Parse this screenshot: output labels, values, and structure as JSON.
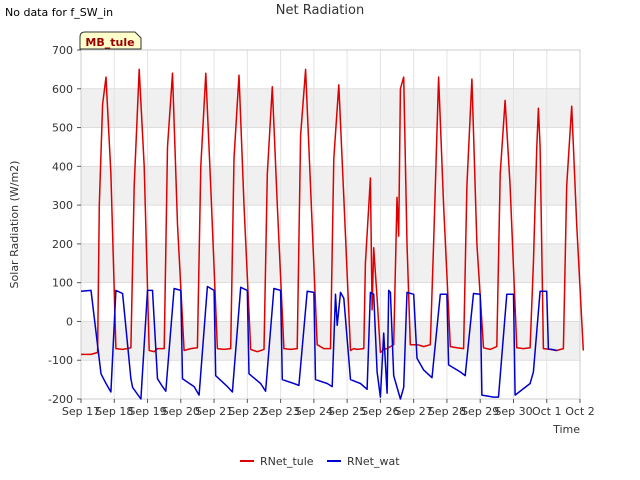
{
  "header": {
    "note": "No data for f_SW_in",
    "site_badge": "MB_tule"
  },
  "chart_data": {
    "type": "line",
    "title": "Net Radiation",
    "xlabel": "Time",
    "ylabel": "Solar Radiation (W/m2)",
    "ylim": [
      -200,
      700
    ],
    "yticks": [
      -200,
      -100,
      0,
      100,
      200,
      300,
      400,
      500,
      600,
      700
    ],
    "xlim": [
      "2023-09-17",
      "2023-10-02"
    ],
    "xtick_labels": [
      "Sep 17",
      "Sep 18",
      "Sep 19",
      "Sep 20",
      "Sep 21",
      "Sep 22",
      "Sep 23",
      "Sep 24",
      "Sep 25",
      "Sep 26",
      "Sep 27",
      "Sep 28",
      "Sep 29",
      "Sep 30",
      "Oct 1",
      "Oct 2"
    ],
    "grid": true,
    "banded_background": true,
    "legend_position": "bottom-center",
    "series": [
      {
        "name": "RNet_tule",
        "color": "#dd0000",
        "x": [
          17.0,
          17.3,
          17.5,
          17.55,
          17.65,
          17.75,
          17.9,
          18.05,
          18.25,
          18.5,
          18.6,
          18.75,
          18.9,
          19.05,
          19.2,
          19.3,
          19.5,
          19.6,
          19.75,
          19.9,
          20.1,
          20.3,
          20.5,
          20.6,
          20.75,
          20.9,
          21.1,
          21.3,
          21.5,
          21.6,
          21.75,
          21.9,
          22.1,
          22.3,
          22.5,
          22.6,
          22.75,
          22.9,
          23.1,
          23.3,
          23.5,
          23.6,
          23.75,
          23.9,
          24.1,
          24.3,
          24.5,
          24.6,
          24.75,
          24.9,
          25.1,
          25.2,
          25.3,
          25.5,
          25.55,
          25.7,
          25.75,
          25.8,
          25.9,
          26.0,
          26.1,
          26.2,
          26.3,
          26.4,
          26.5,
          26.55,
          26.6,
          26.7,
          26.8,
          26.9,
          27.1,
          27.2,
          27.3,
          27.5,
          27.6,
          27.75,
          27.9,
          28.1,
          28.3,
          28.5,
          28.6,
          28.75,
          28.9,
          29.1,
          29.3,
          29.5,
          29.6,
          29.75,
          29.9,
          30.1,
          30.3,
          30.5,
          30.6,
          30.7,
          30.75,
          30.8,
          30.9,
          31.1,
          31.3,
          31.5,
          31.6,
          31.75,
          31.9,
          32.1
        ],
        "y": [
          -85,
          -85,
          -80,
          300,
          560,
          630,
          380,
          -70,
          -72,
          -68,
          350,
          650,
          400,
          -75,
          -78,
          -70,
          -70,
          450,
          640,
          250,
          -75,
          -70,
          -68,
          400,
          640,
          350,
          -70,
          -72,
          -70,
          420,
          635,
          300,
          -72,
          -78,
          -72,
          380,
          605,
          300,
          -70,
          -72,
          -70,
          480,
          650,
          350,
          -60,
          -70,
          -70,
          420,
          610,
          320,
          -75,
          -70,
          -72,
          -70,
          150,
          370,
          30,
          190,
          60,
          -80,
          -72,
          -70,
          -65,
          -60,
          320,
          220,
          600,
          630,
          200,
          -60,
          -60,
          -62,
          -65,
          -60,
          200,
          630,
          300,
          -65,
          -68,
          -70,
          350,
          625,
          200,
          -68,
          -72,
          -65,
          380,
          570,
          350,
          -68,
          -70,
          -68,
          150,
          450,
          550,
          450,
          -70,
          -72,
          -75,
          -70,
          350,
          555,
          250,
          -75
        ]
      },
      {
        "name": "RNet_wat",
        "color": "#0000cc",
        "x": [
          17.0,
          17.3,
          17.6,
          17.75,
          17.9,
          18.05,
          18.25,
          18.5,
          18.55,
          18.8,
          19.0,
          19.15,
          19.3,
          19.45,
          19.55,
          19.8,
          20.0,
          20.05,
          20.4,
          20.55,
          20.8,
          21.0,
          21.05,
          21.4,
          21.55,
          21.8,
          22.0,
          22.05,
          22.4,
          22.55,
          22.8,
          23.0,
          23.05,
          23.4,
          23.55,
          23.8,
          24.0,
          24.05,
          24.4,
          24.55,
          24.65,
          24.7,
          24.8,
          24.9,
          25.1,
          25.4,
          25.6,
          25.7,
          25.8,
          25.9,
          26.0,
          26.1,
          26.2,
          26.25,
          26.3,
          26.4,
          26.6,
          26.7,
          26.8,
          27.0,
          27.1,
          27.3,
          27.55,
          27.8,
          28.0,
          28.05,
          28.4,
          28.55,
          28.8,
          29.0,
          29.05,
          29.4,
          29.55,
          29.8,
          30.0,
          30.05,
          30.5,
          30.6,
          30.8,
          31.0,
          31.05,
          31.3
        ],
        "y": [
          78,
          80,
          -135,
          -160,
          -182,
          80,
          72,
          -148,
          -170,
          -200,
          80,
          80,
          -148,
          -168,
          -180,
          85,
          80,
          -148,
          -168,
          -190,
          90,
          80,
          -140,
          -168,
          -182,
          88,
          80,
          -135,
          -160,
          -180,
          85,
          80,
          -150,
          -160,
          -165,
          78,
          75,
          -150,
          -160,
          -168,
          70,
          -10,
          75,
          60,
          -150,
          -160,
          -175,
          75,
          70,
          -130,
          -195,
          -30,
          -185,
          80,
          75,
          -140,
          -200,
          -170,
          75,
          70,
          -95,
          -125,
          -145,
          70,
          70,
          -112,
          -130,
          -140,
          72,
          70,
          -190,
          -195,
          -195,
          70,
          70,
          -190,
          -160,
          -130,
          78,
          78,
          -70,
          -75
        ]
      }
    ]
  }
}
